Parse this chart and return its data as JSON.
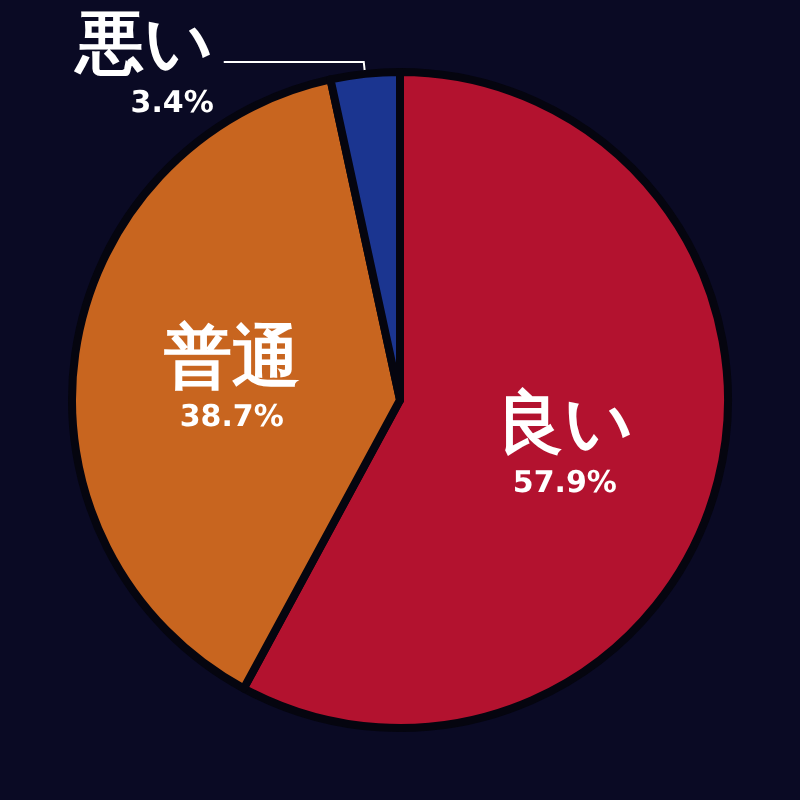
{
  "chart_data": {
    "type": "pie",
    "categories": [
      "良い",
      "普通",
      "悪い"
    ],
    "values": [
      57.9,
      38.7,
      3.4
    ],
    "colors": [
      "#b3122f",
      "#c8651f",
      "#1b3590"
    ],
    "value_labels": [
      "57.9%",
      "38.7%",
      "3.4%"
    ],
    "legend": false
  }
}
